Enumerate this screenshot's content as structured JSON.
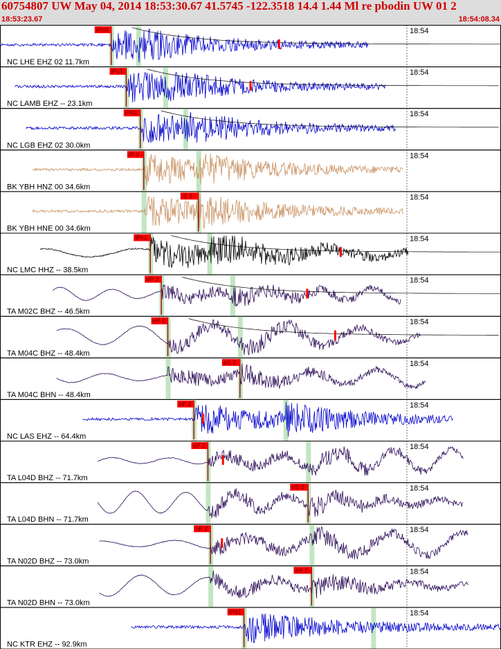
{
  "header": {
    "title": "60754807 UW May 04, 2014 18:53:30.67    41.5745 -122.3518 14.4 1.44 Ml re pbodin UW 01    2",
    "time_start": "18:53:23.67",
    "time_end": "18:54:08.34"
  },
  "colors": {
    "header_bg": "#dcdcdc",
    "header_text": "#d00000",
    "pick_box": "#ff0000",
    "green_band": "#b8e0b8",
    "blue_trace": "#0000cc",
    "tan_trace": "#c89060",
    "black_trace": "#000000",
    "purple_trace": "#2a0a55"
  },
  "chart_data": {
    "type": "line",
    "x_range": [
      "18:53:23.67",
      "18:54:08.34"
    ],
    "minute_tick_label": "18:54",
    "traces": [
      {
        "label": "NC LHE EHZ 02 11.7km",
        "color": "blue",
        "style": "hf",
        "start": 0.0,
        "end": 0.735,
        "p_time": 0.222,
        "s_time": 0.276,
        "p_label": "iPc0",
        "s_label": "",
        "decay": true,
        "amp_mark": 0.557,
        "band_extra": null
      },
      {
        "label": "NC LAMB EHZ -- 23.1km",
        "color": "blue",
        "style": "hf",
        "start": 0.03,
        "end": 0.77,
        "p_time": 0.252,
        "s_time": 0.33,
        "p_label": "iPc1",
        "s_label": "",
        "decay": true,
        "amp_mark": 0.5,
        "band_extra": null
      },
      {
        "label": "NC LGB EHZ 02 30.0km",
        "color": "blue",
        "style": "hf",
        "start": 0.052,
        "end": 0.79,
        "p_time": 0.28,
        "s_time": 0.37,
        "p_label": "iPd1",
        "s_label": "",
        "decay": true,
        "amp_mark": null,
        "band_extra": null
      },
      {
        "label": "BK YBH HNZ 00 34.6km",
        "color": "tan",
        "style": "hf",
        "start": 0.065,
        "end": 0.805,
        "p_time": 0.287,
        "s_time": 0.396,
        "p_label": "iP 0",
        "s_label": "",
        "decay": false,
        "amp_mark": null,
        "band_extra": null
      },
      {
        "label": "BK YBH HNE 00 34.6km",
        "color": "tan",
        "style": "hf",
        "start": 0.065,
        "end": 0.805,
        "p_time": 0.287,
        "s_time": 0.396,
        "p_label": "",
        "s_label": "iS 1",
        "decay": false,
        "amp_mark": null,
        "band_extra": null
      },
      {
        "label": "NC LMC HHZ -- 38.5km",
        "color": "black",
        "style": "mix",
        "start": 0.08,
        "end": 0.815,
        "p_time": 0.3,
        "s_time": 0.418,
        "p_label": "iPc1",
        "s_label": "",
        "decay": true,
        "amp_mark": 0.68,
        "band_extra": null
      },
      {
        "label": "TA M02C BHZ -- 46.5km",
        "color": "purple",
        "style": "lp",
        "start": 0.105,
        "end": 0.8,
        "p_time": 0.322,
        "s_time": 0.464,
        "p_label": "eP 2",
        "s_label": "",
        "decay": true,
        "amp_mark": 0.613,
        "band_extra": null
      },
      {
        "label": "TA M04C BHZ -- 48.4km",
        "color": "purple",
        "style": "lp",
        "start": 0.113,
        "end": 0.84,
        "p_time": 0.335,
        "s_time": 0.479,
        "p_label": "eP 2",
        "s_label": "",
        "decay": true,
        "amp_mark": 0.669,
        "band_extra": null
      },
      {
        "label": "TA M04C BHN -- 48.4km",
        "color": "purple",
        "style": "lp",
        "start": 0.113,
        "end": 0.85,
        "p_time": 0.335,
        "s_time": 0.479,
        "p_label": "",
        "s_label": "eS 2",
        "decay": false,
        "amp_mark": null,
        "band_extra": null
      },
      {
        "label": "NC LAS EHZ -- 64.4km",
        "color": "blue",
        "style": "hf",
        "start": 0.165,
        "end": 0.905,
        "p_time": 0.387,
        "s_time": 0.57,
        "p_label": "eP 2",
        "s_label": "",
        "decay": false,
        "amp_mark": 0.405,
        "band_extra": null
      },
      {
        "label": "TA L04D BHZ -- 71.7km",
        "color": "purple",
        "style": "lp",
        "start": 0.195,
        "end": 0.925,
        "p_time": 0.415,
        "s_time": 0.615,
        "p_label": "eP 2",
        "s_label": "",
        "decay": false,
        "amp_mark": 0.445,
        "band_extra": null
      },
      {
        "label": "TA L04D BHN -- 71.7km",
        "color": "purple",
        "style": "lp",
        "start": 0.195,
        "end": 0.925,
        "p_time": 0.415,
        "s_time": 0.615,
        "p_label": "",
        "s_label": "eS 2",
        "decay": false,
        "amp_mark": null,
        "band_extra": null
      },
      {
        "label": "TA N02D BHZ -- 73.0km",
        "color": "purple",
        "style": "lp",
        "start": 0.198,
        "end": 0.935,
        "p_time": 0.42,
        "s_time": 0.622,
        "p_label": "eP 2",
        "s_label": "",
        "decay": false,
        "amp_mark": 0.443,
        "band_extra": null
      },
      {
        "label": "TA N02D BHN -- 73.0km",
        "color": "purple",
        "style": "lp",
        "start": 0.198,
        "end": 0.935,
        "p_time": 0.42,
        "s_time": 0.622,
        "p_label": "",
        "s_label": "eS 2",
        "decay": false,
        "amp_mark": null,
        "band_extra": null
      },
      {
        "label": "NC KTR EHZ -- 92.9km",
        "color": "blue",
        "style": "hf",
        "start": 0.262,
        "end": 1.0,
        "p_time": 0.487,
        "s_time": null,
        "p_label": "iPd1",
        "s_label": "",
        "decay": false,
        "amp_mark": null,
        "band_extra": 0.745
      }
    ]
  }
}
